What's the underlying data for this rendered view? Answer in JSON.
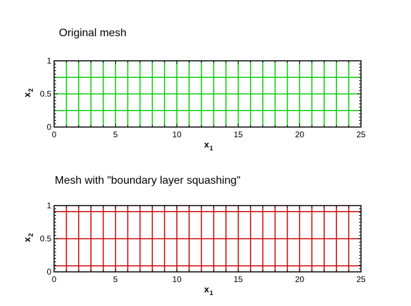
{
  "panels": [
    {
      "title": "Original mesh",
      "line_color": "#00cc00",
      "x_ticks": [
        "0",
        "5",
        "10",
        "15",
        "20",
        "25"
      ],
      "y_ticks": [
        "0",
        "0.5",
        "1"
      ],
      "xlabel": "x",
      "xlabel_sub": "1",
      "ylabel": "x",
      "ylabel_sub": "2",
      "xlim": [
        0,
        25
      ],
      "ylim": [
        0,
        1
      ],
      "vertical_lines_x": [
        1,
        2,
        3,
        4,
        5,
        6,
        7,
        8,
        9,
        10,
        11,
        12,
        13,
        14,
        15,
        16,
        17,
        18,
        19,
        20,
        21,
        22,
        23,
        24
      ],
      "horizontal_lines_y": [
        0.25,
        0.5,
        0.75
      ]
    },
    {
      "title": "Mesh with \"boundary layer squashing\"",
      "line_color": "#cc0000",
      "x_ticks": [
        "0",
        "5",
        "10",
        "15",
        "20",
        "25"
      ],
      "y_ticks": [
        "0",
        "0.5",
        "1"
      ],
      "xlabel": "x",
      "xlabel_sub": "1",
      "ylabel": "x",
      "ylabel_sub": "2",
      "xlim": [
        0,
        25
      ],
      "ylim": [
        0,
        1
      ],
      "vertical_lines_x": [
        1,
        2,
        3,
        4,
        5,
        6,
        7,
        8,
        9,
        10,
        11,
        12,
        13,
        14,
        15,
        16,
        17,
        18,
        19,
        20,
        21,
        22,
        23,
        24
      ],
      "horizontal_lines_y": [
        0.09,
        0.5,
        0.91
      ]
    }
  ]
}
